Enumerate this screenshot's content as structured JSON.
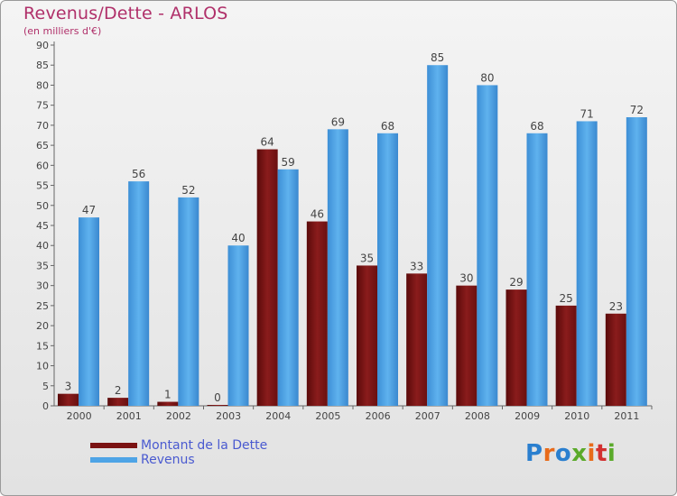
{
  "chart_data": {
    "type": "bar",
    "title": "Revenus/Dette - ARLOS",
    "subtitle": "(en milliers d'€)",
    "categories": [
      "2000",
      "2001",
      "2002",
      "2003",
      "2004",
      "2005",
      "2006",
      "2007",
      "2008",
      "2009",
      "2010",
      "2011"
    ],
    "series": [
      {
        "name": "Montant de la Dette",
        "color": "#7a1212",
        "values": [
          3,
          2,
          1,
          0,
          64,
          46,
          35,
          33,
          30,
          29,
          25,
          23
        ]
      },
      {
        "name": "Revenus",
        "color": "#4ea4e6",
        "values": [
          47,
          56,
          52,
          40,
          59,
          69,
          68,
          85,
          80,
          68,
          71,
          72
        ]
      }
    ],
    "ylim": [
      0,
      90
    ],
    "ytick_step": 5,
    "grid": false,
    "legend_position": "bottom-left"
  },
  "logo": {
    "text": "Proxiti",
    "colors": [
      "#2a7fcf",
      "#e86b1a",
      "#2a7fcf",
      "#5aaa2a",
      "#e86b1a",
      "#d23030",
      "#5aaa2a"
    ]
  }
}
